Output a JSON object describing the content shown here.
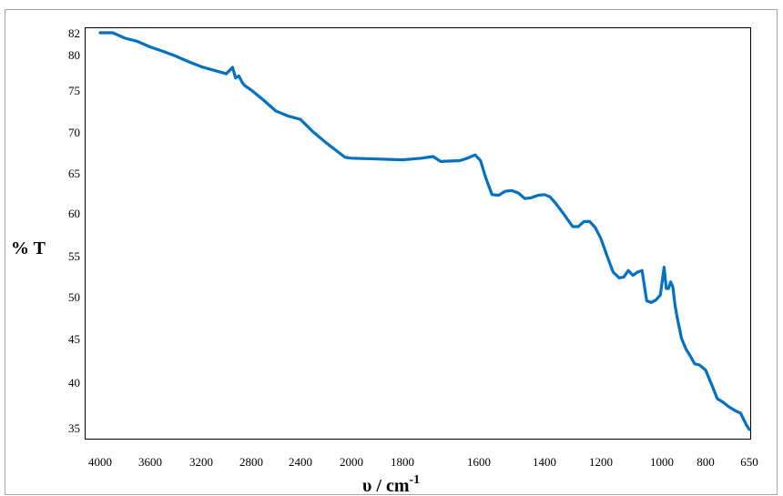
{
  "chart_data": {
    "type": "line",
    "xlabel": "υ / cm",
    "xlabel_superscript": "-1",
    "ylabel": "% T",
    "x_reversed": true,
    "xlim": [
      4000,
      650
    ],
    "ylim": [
      34.5,
      82.5
    ],
    "grid": false,
    "legend": "none",
    "line_color": "#0070c0",
    "x_ticks": [
      {
        "value": 4000,
        "label": "4000"
      },
      {
        "value": 3600,
        "label": "3600"
      },
      {
        "value": 3200,
        "label": "3200"
      },
      {
        "value": 2800,
        "label": "2800"
      },
      {
        "value": 2400,
        "label": "2400"
      },
      {
        "value": 2000,
        "label": "2000"
      },
      {
        "value": 1800,
        "label": "1800"
      },
      {
        "value": 1600,
        "label": "1600"
      },
      {
        "value": 1400,
        "label": "1400"
      },
      {
        "value": 1200,
        "label": "1200"
      },
      {
        "value": 1000,
        "label": "1000"
      },
      {
        "value": 800,
        "label": "800"
      },
      {
        "value": 650,
        "label": "650"
      }
    ],
    "y_ticks": [
      {
        "value": 82,
        "label": "82"
      },
      {
        "value": 80,
        "label": "80"
      },
      {
        "value": 75,
        "label": "75"
      },
      {
        "value": 70,
        "label": "70"
      },
      {
        "value": 65,
        "label": "65"
      },
      {
        "value": 60,
        "label": "60"
      },
      {
        "value": 55,
        "label": "55"
      },
      {
        "value": 50,
        "label": "50"
      },
      {
        "value": 45,
        "label": "45"
      },
      {
        "value": 40,
        "label": "40"
      },
      {
        "value": 35,
        "label": "35"
      }
    ],
    "series": [
      {
        "x": [
          4000,
          3900,
          3800,
          3700,
          3600,
          3500,
          3400,
          3300,
          3200,
          3100,
          3000,
          2950,
          2925,
          2900,
          2870,
          2850,
          2800,
          2700,
          2600,
          2500,
          2400,
          2300,
          2200,
          2100,
          2050,
          2000,
          1900,
          1800,
          1750,
          1720,
          1700,
          1650,
          1630,
          1610,
          1595,
          1580,
          1560,
          1540,
          1520,
          1500,
          1480,
          1460,
          1440,
          1420,
          1400,
          1380,
          1360,
          1330,
          1300,
          1280,
          1260,
          1240,
          1220,
          1200,
          1180,
          1160,
          1140,
          1125,
          1110,
          1095,
          1080,
          1065,
          1050,
          1035,
          1020,
          1005,
          990,
          980,
          970,
          960,
          950,
          940,
          930,
          910,
          890,
          870,
          850,
          830,
          800,
          780,
          760,
          740,
          720,
          700,
          680,
          660,
          650
        ],
        "y": [
          82.0,
          82.0,
          81.5,
          81.2,
          80.7,
          80.3,
          79.8,
          79.0,
          78.3,
          77.8,
          77.3,
          78.2,
          76.7,
          77.0,
          76.0,
          75.6,
          75.0,
          73.8,
          72.5,
          71.9,
          71.5,
          70.0,
          68.7,
          67.5,
          66.9,
          66.8,
          66.7,
          66.6,
          66.8,
          67.0,
          66.4,
          66.5,
          66.8,
          67.2,
          66.5,
          64.5,
          62.3,
          62.2,
          62.7,
          62.8,
          62.5,
          61.8,
          61.9,
          62.2,
          62.3,
          62.0,
          61.2,
          59.8,
          58.4,
          58.4,
          59.0,
          59.0,
          58.3,
          57.0,
          55.0,
          53.0,
          52.3,
          52.4,
          53.2,
          52.6,
          53.0,
          53.2,
          49.5,
          49.3,
          49.6,
          50.2,
          53.6,
          51.0,
          51.0,
          51.8,
          51.2,
          49.0,
          47.5,
          45.0,
          43.8,
          43.0,
          42.1,
          42.0,
          41.4,
          39.8,
          38.2,
          37.8,
          37.3,
          36.9,
          36.6,
          35.3,
          34.8
        ]
      }
    ]
  }
}
